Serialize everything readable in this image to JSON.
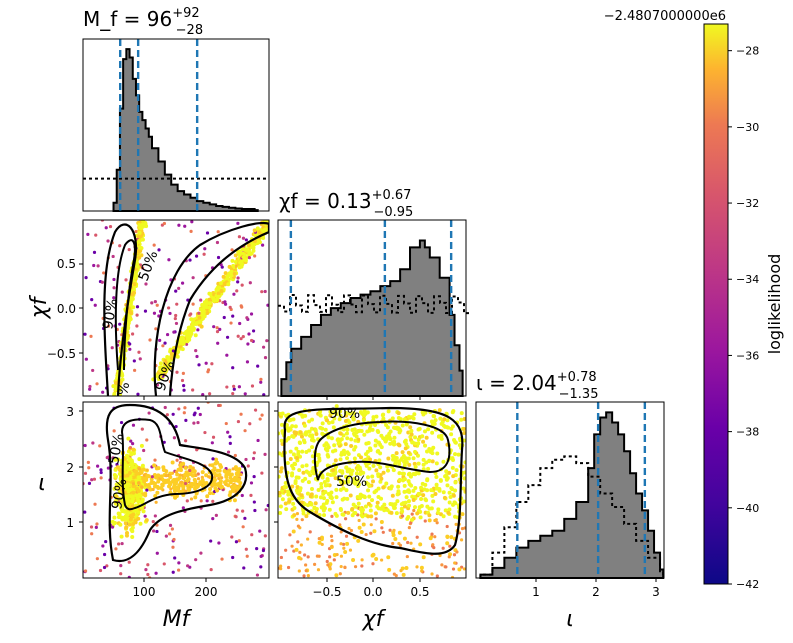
{
  "offset_label": "−2.4807000000e6",
  "colorbar": {
    "label": "loglikelihood",
    "ticks": [
      -28,
      -30,
      -32,
      -34,
      -36,
      -38,
      -40,
      -42
    ],
    "tick_labels": [
      "−28",
      "−30",
      "−32",
      "−34",
      "−36",
      "−38",
      "−40",
      "−42"
    ],
    "range": [
      -42,
      -27.3
    ],
    "colormap": "plasma"
  },
  "chart_data": [
    {
      "type": "histogram",
      "panel": "Mf-marginal",
      "title": {
        "main": "M_f = 96",
        "sup": "+92",
        "sub": "−28"
      },
      "xlim": [
        10,
        300
      ],
      "bins": [
        [
          60,
          0.05
        ],
        [
          65,
          0.25
        ],
        [
          70,
          0.62
        ],
        [
          75,
          0.92
        ],
        [
          80,
          0.98
        ],
        [
          85,
          0.93
        ],
        [
          90,
          0.8
        ],
        [
          95,
          0.7
        ],
        [
          100,
          0.6
        ],
        [
          105,
          0.55
        ],
        [
          110,
          0.5
        ],
        [
          115,
          0.45
        ],
        [
          120,
          0.38
        ],
        [
          130,
          0.3
        ],
        [
          140,
          0.22
        ],
        [
          150,
          0.16
        ],
        [
          160,
          0.12
        ],
        [
          170,
          0.1
        ],
        [
          180,
          0.08
        ],
        [
          190,
          0.06
        ],
        [
          200,
          0.05
        ],
        [
          210,
          0.04
        ],
        [
          220,
          0.03
        ],
        [
          230,
          0.025
        ],
        [
          240,
          0.02
        ],
        [
          250,
          0.015
        ],
        [
          260,
          0.012
        ],
        [
          280,
          0.005
        ]
      ],
      "prior_level": 0.2,
      "quantile_lines": [
        68,
        96,
        188
      ]
    },
    {
      "type": "scatter",
      "panel": "Mf-chif",
      "xlim": [
        10,
        300
      ],
      "ylim": [
        -0.95,
        0.95
      ],
      "yticks": [
        0.5,
        0.0,
        -0.5
      ],
      "ytick_labels": [
        "0.5",
        "0.0",
        "−0.5"
      ],
      "ylabel": "χf",
      "contour_labels": [
        "50%",
        "50%",
        "90%",
        "90%",
        "%"
      ]
    },
    {
      "type": "histogram",
      "panel": "chif-marginal",
      "title": {
        "main": "χf = 0.13",
        "sup": "+0.67",
        "sub": "−0.95"
      },
      "xlim": [
        -0.95,
        0.95
      ],
      "bins": [
        [
          -0.9,
          0.1
        ],
        [
          -0.85,
          0.2
        ],
        [
          -0.8,
          0.28
        ],
        [
          -0.7,
          0.35
        ],
        [
          -0.6,
          0.42
        ],
        [
          -0.5,
          0.48
        ],
        [
          -0.4,
          0.52
        ],
        [
          -0.3,
          0.55
        ],
        [
          -0.2,
          0.58
        ],
        [
          -0.1,
          0.6
        ],
        [
          0.0,
          0.62
        ],
        [
          0.1,
          0.65
        ],
        [
          0.2,
          0.68
        ],
        [
          0.3,
          0.75
        ],
        [
          0.4,
          0.88
        ],
        [
          0.5,
          0.92
        ],
        [
          0.55,
          0.88
        ],
        [
          0.6,
          0.82
        ],
        [
          0.7,
          0.7
        ],
        [
          0.8,
          0.48
        ],
        [
          0.85,
          0.3
        ],
        [
          0.9,
          0.15
        ]
      ],
      "prior_level": 0.55,
      "quantile_lines": [
        -0.82,
        0.13,
        0.8
      ]
    },
    {
      "type": "scatter",
      "panel": "Mf-iota",
      "xlim": [
        10,
        300
      ],
      "ylim": [
        0.0,
        3.14
      ],
      "xticks": [
        100,
        200
      ],
      "xtick_labels": [
        "100",
        "200"
      ],
      "yticks": [
        3,
        2,
        1
      ],
      "ytick_labels": [
        "3",
        "2",
        "1"
      ],
      "xlabel": "Mf",
      "ylabel": "ι",
      "contour_labels": [
        "50%",
        "90%"
      ]
    },
    {
      "type": "scatter",
      "panel": "chif-iota",
      "xlim": [
        -0.95,
        0.95
      ],
      "ylim": [
        0.0,
        3.14
      ],
      "xticks": [
        -0.5,
        0.0,
        0.5
      ],
      "xtick_labels": [
        "−0.5",
        "0.0",
        "0.5"
      ],
      "xlabel": "χf",
      "contour_labels": [
        "90%",
        "50%"
      ]
    },
    {
      "type": "histogram",
      "panel": "iota-marginal",
      "title": {
        "main": "ι = 2.04",
        "sup": "+0.78",
        "sub": "−1.35"
      },
      "xlim": [
        0.0,
        3.14
      ],
      "xticks": [
        1,
        2,
        3
      ],
      "xtick_labels": [
        "1",
        "2",
        "3"
      ],
      "xlabel": "ι",
      "bins": [
        [
          0.1,
          0.02
        ],
        [
          0.3,
          0.06
        ],
        [
          0.5,
          0.12
        ],
        [
          0.7,
          0.18
        ],
        [
          0.9,
          0.22
        ],
        [
          1.1,
          0.25
        ],
        [
          1.3,
          0.28
        ],
        [
          1.5,
          0.35
        ],
        [
          1.7,
          0.45
        ],
        [
          1.9,
          0.65
        ],
        [
          2.0,
          0.85
        ],
        [
          2.1,
          0.95
        ],
        [
          2.2,
          0.98
        ],
        [
          2.3,
          0.92
        ],
        [
          2.4,
          0.85
        ],
        [
          2.5,
          0.75
        ],
        [
          2.6,
          0.62
        ],
        [
          2.7,
          0.5
        ],
        [
          2.8,
          0.4
        ],
        [
          2.9,
          0.28
        ],
        [
          3.0,
          0.15
        ],
        [
          3.1,
          0.05
        ]
      ],
      "prior_bins": [
        [
          0.1,
          0.02
        ],
        [
          0.3,
          0.15
        ],
        [
          0.5,
          0.3
        ],
        [
          0.7,
          0.45
        ],
        [
          0.9,
          0.55
        ],
        [
          1.1,
          0.65
        ],
        [
          1.3,
          0.7
        ],
        [
          1.5,
          0.72
        ],
        [
          1.7,
          0.68
        ],
        [
          1.9,
          0.6
        ],
        [
          2.1,
          0.5
        ],
        [
          2.3,
          0.42
        ],
        [
          2.5,
          0.32
        ],
        [
          2.7,
          0.22
        ],
        [
          2.9,
          0.12
        ],
        [
          3.1,
          0.04
        ]
      ],
      "quantile_lines": [
        0.69,
        2.04,
        2.82
      ]
    }
  ]
}
